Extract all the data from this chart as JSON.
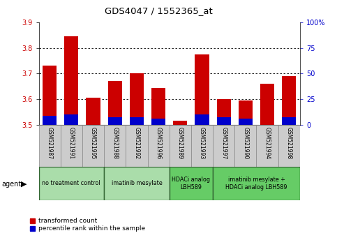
{
  "title": "GDS4047 / 1552365_at",
  "samples": [
    "GSM521987",
    "GSM521991",
    "GSM521995",
    "GSM521988",
    "GSM521992",
    "GSM521996",
    "GSM521989",
    "GSM521993",
    "GSM521997",
    "GSM521990",
    "GSM521994",
    "GSM521998"
  ],
  "red_values": [
    3.73,
    3.845,
    3.605,
    3.67,
    3.7,
    3.645,
    3.515,
    3.775,
    3.6,
    3.595,
    3.66,
    3.69
  ],
  "blue_values": [
    0.035,
    0.04,
    0.0,
    0.03,
    0.03,
    0.025,
    0.0,
    0.04,
    0.03,
    0.025,
    0.0,
    0.03
  ],
  "ymin": 3.5,
  "ymax": 3.9,
  "yticks": [
    3.5,
    3.6,
    3.7,
    3.8,
    3.9
  ],
  "y2ticks": [
    0,
    25,
    50,
    75,
    100
  ],
  "y2labels": [
    "0",
    "25",
    "50",
    "75",
    "100%"
  ],
  "groups": [
    {
      "label": "no treatment control",
      "indices": [
        0,
        1,
        2
      ],
      "color": "#aaddaa"
    },
    {
      "label": "imatinib mesylate",
      "indices": [
        3,
        4,
        5
      ],
      "color": "#aaddaa"
    },
    {
      "label": "HDACi analog\nLBH589",
      "indices": [
        6,
        7
      ],
      "color": "#66cc66"
    },
    {
      "label": "imatinib mesylate +\nHDACi analog LBH589",
      "indices": [
        8,
        9,
        10,
        11
      ],
      "color": "#66cc66"
    }
  ],
  "bar_color_red": "#cc0000",
  "bar_color_blue": "#0000cc",
  "bar_width": 0.65,
  "grid_color": "#000000",
  "label_color_left": "#cc0000",
  "label_color_right": "#0000cc",
  "agent_label": "agent",
  "legend_red": "transformed count",
  "legend_blue": "percentile rank within the sample",
  "tick_bg": "#cccccc",
  "group_border_color": "#336633"
}
